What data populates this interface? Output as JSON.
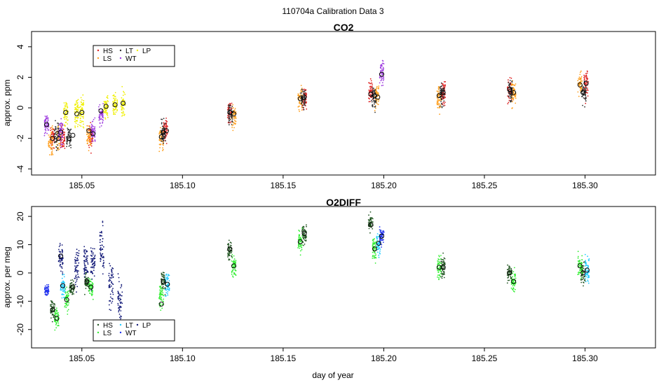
{
  "figure": {
    "title": "110704a   Calibration Data 3"
  },
  "colors": {
    "HS": "#dd2222",
    "LS": "#ffa020",
    "LT": "#333333",
    "WT": "#a040e0",
    "LP": "#f0f000",
    "O2_HS": "#225522",
    "O2_LS": "#33ee33",
    "O2_LT": "#22ccff",
    "O2_WT": "#2233ee",
    "O2_LP": "#111877"
  },
  "chart_data": [
    {
      "type": "scatter",
      "title": "CO2",
      "xlabel": "",
      "ylabel": "approx. ppm",
      "xlim": [
        185.025,
        185.335
      ],
      "ylim": [
        -4.4,
        5.0
      ],
      "xticks": [
        "185.05",
        "185.10",
        "185.15",
        "185.20",
        "185.25",
        "185.30"
      ],
      "xtick_values": [
        185.05,
        185.1,
        185.15,
        185.2,
        185.25,
        185.3
      ],
      "yticks": [
        "-4",
        "-2",
        "0",
        "2",
        "4"
      ],
      "ytick_values": [
        -4,
        -2,
        0,
        2,
        4
      ],
      "legend": {
        "placement": "top-left",
        "entries": [
          "HS",
          "LS",
          "LT",
          "WT",
          "LP"
        ]
      },
      "series": [
        {
          "name": "HS",
          "colorKey": "HS",
          "clusters": [
            [
              185.0355,
              -2.0,
              0.6
            ],
            [
              185.0405,
              -2.0,
              0.6
            ],
            [
              185.0545,
              -1.8,
              0.6
            ],
            [
              185.0915,
              -1.4,
              0.6
            ],
            [
              185.1235,
              -0.3,
              0.6
            ],
            [
              185.1605,
              0.6,
              0.6
            ],
            [
              185.1935,
              1.0,
              0.6
            ],
            [
              185.2295,
              1.0,
              0.6
            ],
            [
              185.2625,
              1.1,
              0.6
            ],
            [
              185.3005,
              1.6,
              0.8
            ]
          ]
        },
        {
          "name": "LS",
          "colorKey": "LS",
          "clusters": [
            [
              185.0345,
              -2.2,
              0.6
            ],
            [
              185.0385,
              -2.0,
              0.6
            ],
            [
              185.0535,
              -1.9,
              0.6
            ],
            [
              185.0895,
              -2.0,
              0.6
            ],
            [
              185.1255,
              -0.5,
              0.6
            ],
            [
              185.1585,
              0.6,
              0.6
            ],
            [
              185.1965,
              0.8,
              0.6
            ],
            [
              185.2275,
              0.8,
              0.6
            ],
            [
              185.2645,
              1.0,
              0.6
            ],
            [
              185.2975,
              1.5,
              0.6
            ]
          ]
        },
        {
          "name": "LT",
          "colorKey": "LT",
          "clusters": [
            [
              185.0375,
              -1.8,
              0.6
            ],
            [
              185.0435,
              -1.9,
              0.6
            ],
            [
              185.0905,
              -1.6,
              0.6
            ],
            [
              185.124,
              -0.4,
              0.5
            ],
            [
              185.16,
              0.6,
              0.5
            ],
            [
              185.195,
              0.7,
              0.6
            ],
            [
              185.229,
              0.9,
              0.6
            ],
            [
              185.263,
              1.1,
              0.5
            ],
            [
              185.2995,
              1.0,
              0.6
            ]
          ]
        },
        {
          "name": "WT",
          "colorKey": "WT",
          "clusters": [
            [
              185.0325,
              -1.0,
              0.5
            ],
            [
              185.0395,
              -1.6,
              0.6
            ],
            [
              185.0555,
              -1.5,
              0.5
            ],
            [
              185.0595,
              -0.5,
              0.5
            ],
            [
              185.199,
              2.3,
              0.6
            ]
          ]
        },
        {
          "name": "LP",
          "colorKey": "LP",
          "clusters": [
            [
              185.042,
              -0.3,
              0.6
            ],
            [
              185.0475,
              -0.3,
              0.7
            ],
            [
              185.05,
              -0.3,
              0.7
            ],
            [
              185.062,
              0.1,
              0.6
            ],
            [
              185.0665,
              0.2,
              0.6
            ],
            [
              185.0705,
              0.3,
              0.6
            ]
          ]
        }
      ],
      "means": [
        [
          185.0325,
          -1.1
        ],
        [
          185.0355,
          -2.0
        ],
        [
          185.0385,
          -2.0
        ],
        [
          185.0395,
          -1.6
        ],
        [
          185.042,
          -0.3
        ],
        [
          185.0435,
          -2.0
        ],
        [
          185.0455,
          -1.8
        ],
        [
          185.0475,
          -0.4
        ],
        [
          185.05,
          -0.3
        ],
        [
          185.0535,
          -1.5
        ],
        [
          185.0555,
          -1.7
        ],
        [
          185.0595,
          -0.2
        ],
        [
          185.062,
          0.1
        ],
        [
          185.0665,
          0.2
        ],
        [
          185.0705,
          0.3
        ],
        [
          185.0895,
          -1.9
        ],
        [
          185.0905,
          -1.6
        ],
        [
          185.092,
          -1.5
        ],
        [
          185.1235,
          -0.3
        ],
        [
          185.1255,
          -0.4
        ],
        [
          185.1585,
          0.6
        ],
        [
          185.1605,
          0.7
        ],
        [
          185.1935,
          0.9
        ],
        [
          185.1955,
          0.8
        ],
        [
          185.197,
          0.7
        ],
        [
          185.199,
          2.2
        ],
        [
          185.2275,
          0.8
        ],
        [
          185.2295,
          1.0
        ],
        [
          185.2625,
          1.2
        ],
        [
          185.2645,
          1.0
        ],
        [
          185.2975,
          1.5
        ],
        [
          185.299,
          1.0
        ],
        [
          185.3005,
          1.6
        ]
      ]
    },
    {
      "type": "scatter",
      "title": "O2DIFF",
      "xlabel": "day of year",
      "ylabel": "approx. per meg",
      "xlim": [
        185.025,
        185.335
      ],
      "ylim": [
        -26.5,
        23.5
      ],
      "xticks": [
        "185.05",
        "185.10",
        "185.15",
        "185.20",
        "185.25",
        "185.30"
      ],
      "xtick_values": [
        185.05,
        185.1,
        185.15,
        185.2,
        185.25,
        185.3
      ],
      "yticks": [
        "-20",
        "-10",
        "0",
        "10",
        "20"
      ],
      "ytick_values": [
        -20,
        -10,
        0,
        10,
        20
      ],
      "legend": {
        "placement": "bottom-left",
        "entries": [
          "HS",
          "LS",
          "LT",
          "WT",
          "LP"
        ]
      },
      "series": [
        {
          "name": "HS",
          "colorKey": "O2_HS",
          "clusters": [
            [
              185.0355,
              -13,
              2.5
            ],
            [
              185.045,
              -5,
              2.5
            ],
            [
              185.0525,
              -3,
              2.5
            ],
            [
              185.0905,
              -3,
              2.5
            ],
            [
              185.1235,
              8.5,
              2.5
            ],
            [
              185.1605,
              14,
              2.5
            ],
            [
              185.1935,
              17,
              2.5
            ],
            [
              185.2295,
              2,
              2.5
            ],
            [
              185.2625,
              0,
              2.5
            ],
            [
              185.299,
              0,
              3
            ]
          ]
        },
        {
          "name": "LS",
          "colorKey": "O2_LS",
          "clusters": [
            [
              185.0375,
              -16,
              3
            ],
            [
              185.0425,
              -9.5,
              3
            ],
            [
              185.0545,
              -5,
              3
            ],
            [
              185.0895,
              -8,
              3
            ],
            [
              185.1255,
              2.5,
              3
            ],
            [
              185.1585,
              11,
              3
            ],
            [
              185.1955,
              8.5,
              3
            ],
            [
              185.2275,
              2,
              3
            ],
            [
              185.2645,
              -3,
              3
            ],
            [
              185.2975,
              2.5,
              3
            ]
          ]
        },
        {
          "name": "LT",
          "colorKey": "O2_LT",
          "clusters": [
            [
              185.0405,
              -5,
              3
            ],
            [
              185.0925,
              -4,
              3
            ],
            [
              185.1975,
              10.5,
              3
            ],
            [
              185.301,
              1,
              3
            ]
          ]
        },
        {
          "name": "WT",
          "colorKey": "O2_WT",
          "clusters": [
            [
              185.0325,
              -6,
              1.5
            ],
            [
              185.199,
              13,
              2.5
            ]
          ]
        },
        {
          "name": "LP",
          "colorKey": "O2_LP",
          "clusters": [
            [
              185.0395,
              5.5,
              4
            ],
            [
              185.0475,
              2,
              5
            ],
            [
              185.052,
              4,
              5
            ],
            [
              185.0555,
              4,
              5
            ],
            [
              185.06,
              8,
              7
            ],
            [
              185.0645,
              -3,
              6
            ],
            [
              185.069,
              -10,
              6
            ]
          ]
        }
      ],
      "means": [
        [
          185.0355,
          -13
        ],
        [
          185.0375,
          -16
        ],
        [
          185.0395,
          6
        ],
        [
          185.0405,
          -4.5
        ],
        [
          185.0425,
          -9.5
        ],
        [
          185.0455,
          -5
        ],
        [
          185.0525,
          -3
        ],
        [
          185.0545,
          -5
        ],
        [
          185.0895,
          -11
        ],
        [
          185.0905,
          -3
        ],
        [
          185.0925,
          -4
        ],
        [
          185.1235,
          8.5
        ],
        [
          185.1255,
          2.5
        ],
        [
          185.1585,
          11
        ],
        [
          185.1605,
          14
        ],
        [
          185.1935,
          17
        ],
        [
          185.1955,
          8.5
        ],
        [
          185.1975,
          10.5
        ],
        [
          185.199,
          13
        ],
        [
          185.2275,
          2
        ],
        [
          185.2295,
          2
        ],
        [
          185.2625,
          0
        ],
        [
          185.2645,
          -3
        ],
        [
          185.2975,
          2.5
        ],
        [
          185.299,
          0
        ],
        [
          185.301,
          1
        ]
      ]
    }
  ]
}
